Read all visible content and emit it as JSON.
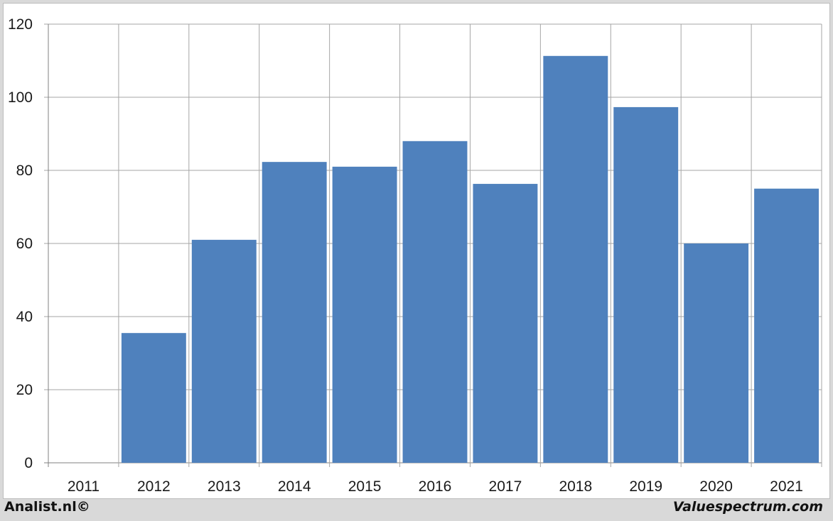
{
  "footer": {
    "left_credit": "Analist.nl©",
    "right_credit": "Valuespectrum.com"
  },
  "colors": {
    "bar": "#4f81bd",
    "grid": "#a6a6a6",
    "axis": "#808080"
  },
  "chart_data": {
    "type": "bar",
    "categories": [
      "2011",
      "2012",
      "2013",
      "2014",
      "2015",
      "2016",
      "2017",
      "2018",
      "2019",
      "2020",
      "2021"
    ],
    "values": [
      0,
      35.5,
      61,
      82.3,
      81,
      88,
      76.3,
      111.3,
      97.3,
      60,
      75
    ],
    "ylim": [
      0,
      120
    ],
    "yticks": [
      0,
      20,
      40,
      60,
      80,
      100,
      120
    ],
    "grid": true,
    "legend": "none"
  }
}
